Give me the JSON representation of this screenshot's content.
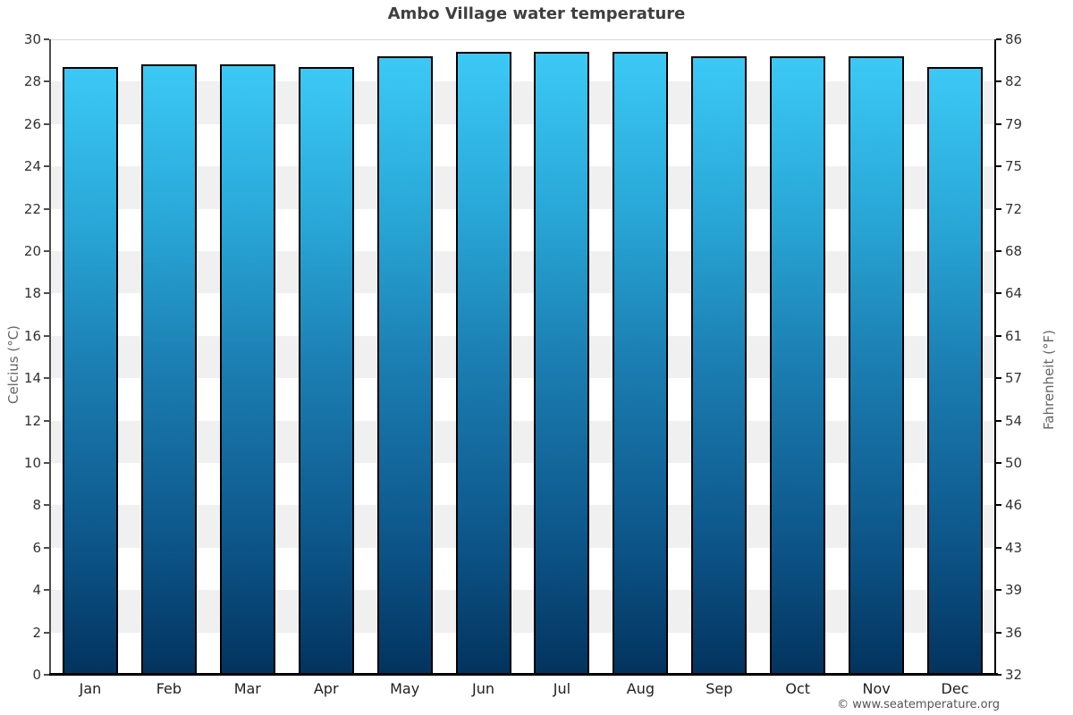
{
  "title": "Ambo Village water temperature",
  "copyright": "© www.seatemperature.org",
  "chart_data": {
    "type": "bar",
    "title": "Ambo Village water temperature",
    "categories": [
      "Jan",
      "Feb",
      "Mar",
      "Apr",
      "May",
      "Jun",
      "Jul",
      "Aug",
      "Sep",
      "Oct",
      "Nov",
      "Dec"
    ],
    "series": [
      {
        "name": "Water temperature (°C)",
        "values": [
          28.7,
          28.8,
          28.8,
          28.7,
          29.2,
          29.4,
          29.4,
          29.4,
          29.2,
          29.2,
          29.2,
          28.7
        ]
      }
    ],
    "ylabel_left": "Celcius (°C)",
    "ylabel_right": "Fahrenheit (°F)",
    "ylim_celsius": [
      0,
      30
    ],
    "yticks_celsius": [
      30,
      28,
      26,
      24,
      22,
      20,
      18,
      16,
      14,
      12,
      10,
      8,
      6,
      4,
      2,
      0
    ],
    "yticks_fahrenheit": [
      86,
      82,
      79,
      75,
      72,
      68,
      64,
      61,
      57,
      54,
      50,
      46,
      43,
      39,
      36,
      32
    ],
    "grid": "alternating horizontal bands every 2°C, white and light gray",
    "legend_position": "none",
    "colors": {
      "bar_gradient_top": "#3cc9f5",
      "bar_gradient_mid": "#1b7db1",
      "bar_gradient_bottom": "#03335e",
      "bar_border": "#000000",
      "band_gray": "#f0f0f0",
      "band_white": "#ffffff",
      "axis_left_line": "#4d4d4d",
      "axis_right_line": "#000000",
      "axis_bottom_line": "#000000",
      "tick_label": "#333333",
      "axis_title": "#666666",
      "title": "#3f3f3f",
      "copyright": "#555555"
    }
  }
}
